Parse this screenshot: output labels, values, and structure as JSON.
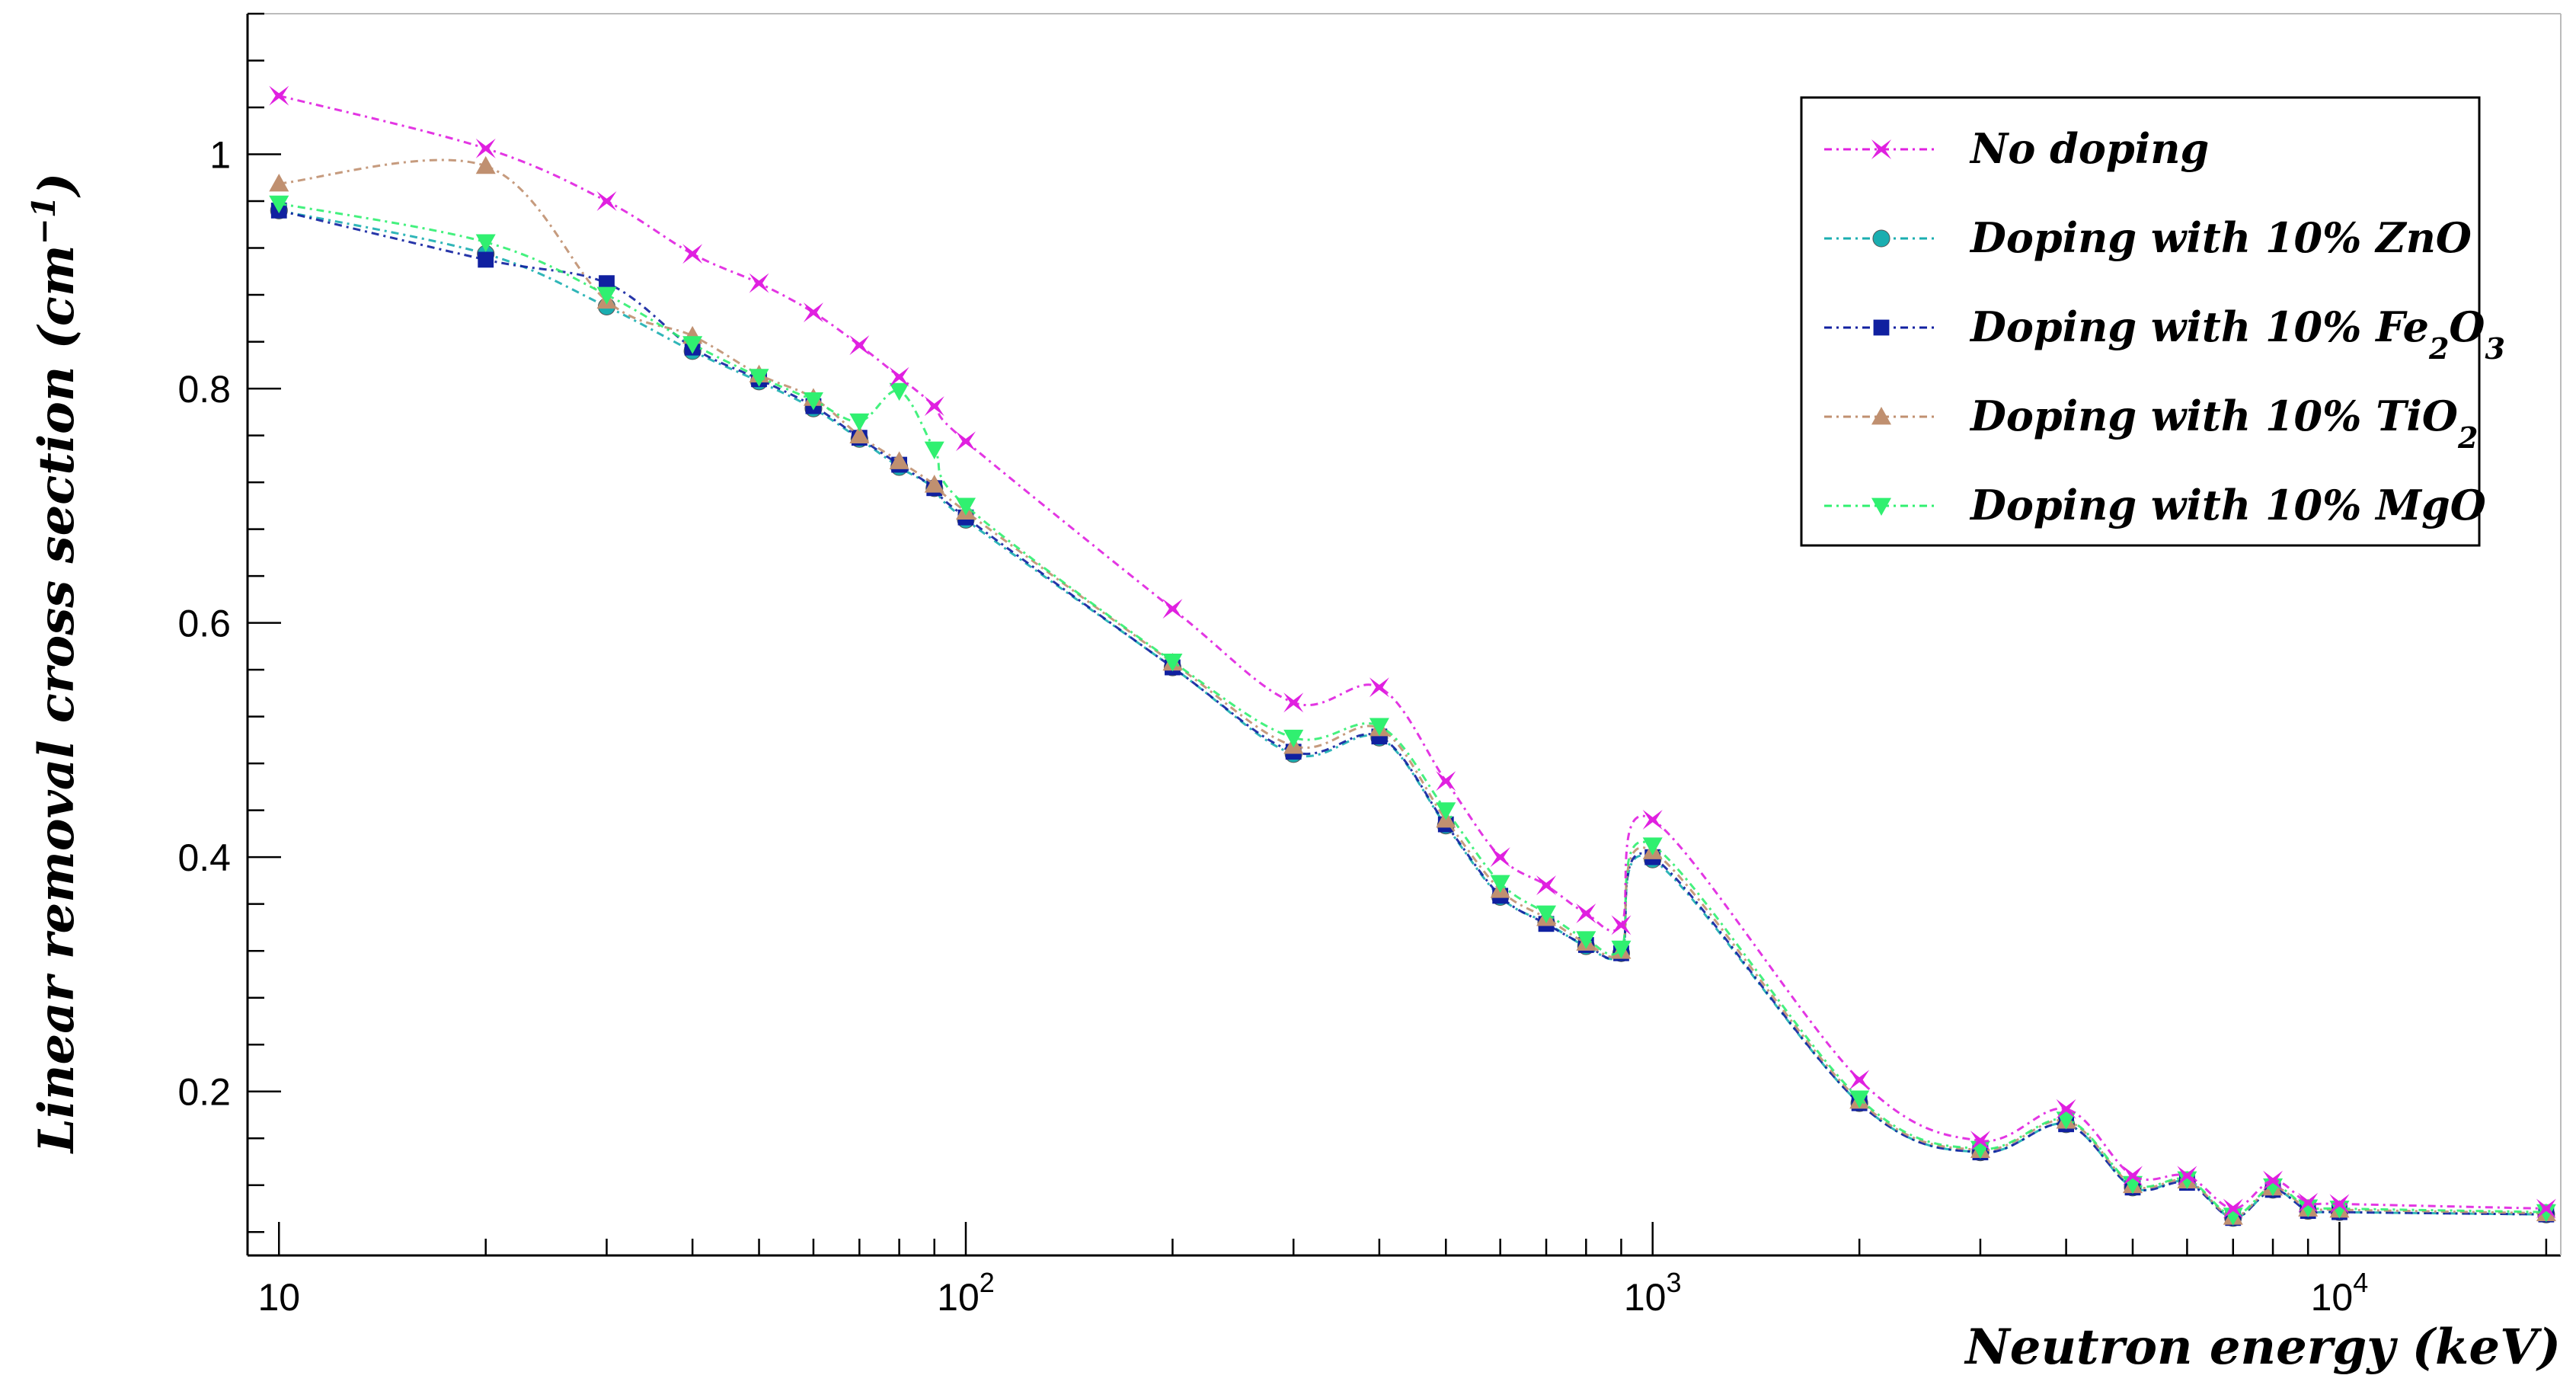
{
  "chart_data": {
    "type": "line",
    "xscale": "log",
    "xlim": [
      9,
      21000
    ],
    "ylim": [
      0.06,
      1.12
    ],
    "xlabel": "Neutron energy (keV)",
    "ylabel": "Linear removal cross section (cm−1)",
    "ylabel_parts": {
      "main": "Linear removal cross section (cm",
      "sup": "−1",
      "close": ")"
    },
    "y_ticks": [
      0.2,
      0.4,
      0.6,
      0.8,
      1.0
    ],
    "y_tick_labels": [
      "0.2",
      "0.4",
      "0.6",
      "0.8",
      "1"
    ],
    "x_ticks": [
      10,
      100,
      1000,
      10000
    ],
    "x_tick_labels": [
      {
        "base": "10",
        "exp": ""
      },
      {
        "base": "10",
        "exp": "2"
      },
      {
        "base": "10",
        "exp": "3"
      },
      {
        "base": "10",
        "exp": "4"
      }
    ],
    "grid": false,
    "legend_position": "top-right",
    "x": [
      10,
      20,
      30,
      40,
      50,
      60,
      70,
      80,
      90,
      100,
      200,
      300,
      400,
      500,
      600,
      700,
      800,
      900,
      1000,
      2000,
      3000,
      4000,
      5000,
      6000,
      7000,
      8000,
      9000,
      10000,
      20000
    ],
    "series": [
      {
        "name": "No doping",
        "label_parts": [
          {
            "t": "No doping",
            "sub": false
          }
        ],
        "color": "#e020e0",
        "marker": "star",
        "values": [
          1.05,
          1.005,
          0.96,
          0.915,
          0.89,
          0.865,
          0.837,
          0.81,
          0.785,
          0.755,
          0.612,
          0.532,
          0.545,
          0.465,
          0.4,
          0.376,
          0.352,
          0.342,
          0.432,
          0.21,
          0.158,
          0.185,
          0.128,
          0.128,
          0.1,
          0.124,
          0.105,
          0.104,
          0.1
        ]
      },
      {
        "name": "Doping with 10% ZnO",
        "label_parts": [
          {
            "t": "Doping with 10% ZnO",
            "sub": false
          }
        ],
        "color": "#1aaeb0",
        "marker": "circle",
        "values": [
          0.952,
          0.915,
          0.87,
          0.832,
          0.806,
          0.783,
          0.757,
          0.733,
          0.715,
          0.688,
          0.562,
          0.488,
          0.502,
          0.427,
          0.366,
          0.344,
          0.324,
          0.318,
          0.398,
          0.19,
          0.148,
          0.172,
          0.118,
          0.123,
          0.092,
          0.116,
          0.098,
          0.097,
          0.095
        ]
      },
      {
        "name": "Doping with 10% Fe2O3",
        "label_parts": [
          {
            "t": "Doping with 10% Fe",
            "sub": false
          },
          {
            "t": "2",
            "sub": true
          },
          {
            "t": "O",
            "sub": false
          },
          {
            "t": "3",
            "sub": true
          }
        ],
        "color": "#1020a0",
        "marker": "square",
        "values": [
          0.952,
          0.91,
          0.89,
          0.835,
          0.808,
          0.785,
          0.758,
          0.735,
          0.715,
          0.69,
          0.562,
          0.49,
          0.503,
          0.428,
          0.367,
          0.343,
          0.325,
          0.318,
          0.4,
          0.19,
          0.148,
          0.172,
          0.118,
          0.122,
          0.092,
          0.116,
          0.098,
          0.097,
          0.095
        ]
      },
      {
        "name": "Doping with 10% TiO2",
        "label_parts": [
          {
            "t": "Doping with 10% TiO",
            "sub": false
          },
          {
            "t": "2",
            "sub": true
          }
        ],
        "color": "#c09070",
        "marker": "triangle-up",
        "values": [
          0.975,
          0.99,
          0.875,
          0.845,
          0.812,
          0.792,
          0.76,
          0.738,
          0.718,
          0.695,
          0.566,
          0.495,
          0.51,
          0.432,
          0.372,
          0.348,
          0.327,
          0.32,
          0.405,
          0.192,
          0.15,
          0.175,
          0.12,
          0.124,
          0.093,
          0.118,
          0.1,
          0.099,
          0.096
        ]
      },
      {
        "name": "Doping with 10% MgO",
        "label_parts": [
          {
            "t": "Doping with 10% MgO",
            "sub": false
          }
        ],
        "color": "#30f070",
        "marker": "triangle-down",
        "values": [
          0.958,
          0.925,
          0.88,
          0.838,
          0.81,
          0.79,
          0.772,
          0.798,
          0.748,
          0.7,
          0.567,
          0.502,
          0.512,
          0.44,
          0.378,
          0.352,
          0.33,
          0.322,
          0.41,
          0.194,
          0.151,
          0.176,
          0.121,
          0.125,
          0.094,
          0.119,
          0.101,
          0.1,
          0.097
        ]
      }
    ]
  }
}
